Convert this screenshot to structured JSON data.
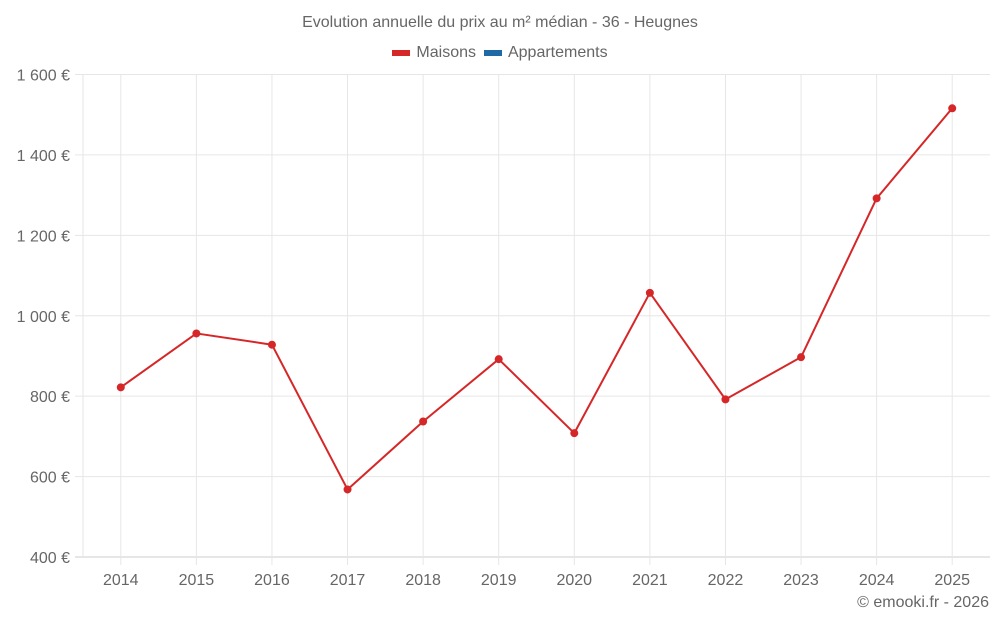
{
  "title": "Evolution annuelle du prix au m² médian - 36 - Heugnes",
  "legend": [
    {
      "label": "Maisons",
      "color": "#d62728"
    },
    {
      "label": "Appartements",
      "color": "#1f6aa5"
    }
  ],
  "credit": "© emooki.fr - 2026",
  "colors": {
    "maisons": "#d62728",
    "appartements": "#1f6aa5",
    "grid": "#e6e6e6",
    "axis": "#cccccc"
  },
  "chart_data": {
    "type": "line",
    "title": "Evolution annuelle du prix au m² médian - 36 - Heugnes",
    "xlabel": "",
    "ylabel": "",
    "categories": [
      "2014",
      "2015",
      "2016",
      "2017",
      "2018",
      "2019",
      "2020",
      "2021",
      "2022",
      "2023",
      "2024",
      "2025"
    ],
    "series": [
      {
        "name": "Maisons",
        "color": "#d62728",
        "values": [
          822,
          956,
          928,
          568,
          737,
          892,
          708,
          1057,
          792,
          897,
          1292,
          1516
        ]
      },
      {
        "name": "Appartements",
        "color": "#1f6aa5",
        "values": []
      }
    ],
    "y_ticks": [
      "400 €",
      "600 €",
      "800 €",
      "1 000 €",
      "1 200 €",
      "1 400 €",
      "1 600 €"
    ],
    "y_tick_values": [
      400,
      600,
      800,
      1000,
      1200,
      1400,
      1600
    ],
    "ylim": [
      400,
      1600
    ],
    "grid": true,
    "legend_position": "top"
  }
}
